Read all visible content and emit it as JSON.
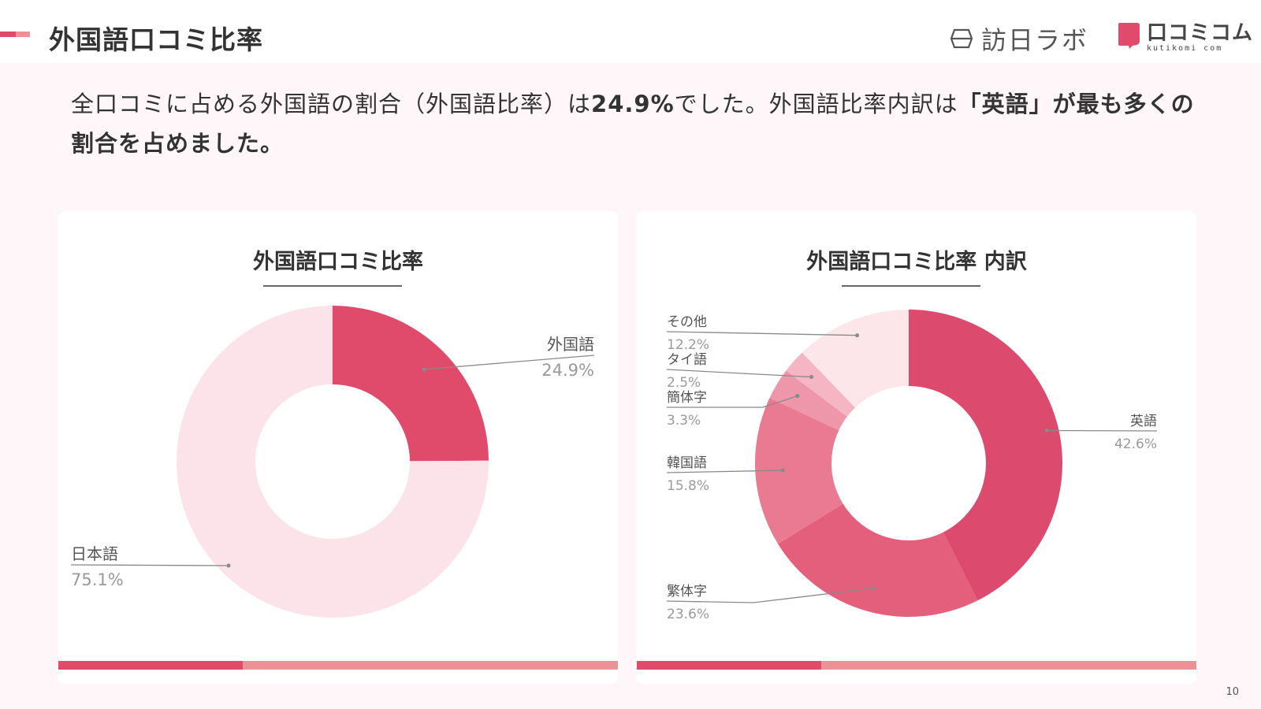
{
  "header": {
    "title": "外国語口コミ比率",
    "logo_houjin": "訪日ラボ",
    "logo_kuchi_main": "口コミコム",
    "logo_kuchi_sub": "kutikomi com"
  },
  "summary": {
    "part1": "全口コミに占める外国語の割合（外国語比率）は",
    "highlight1": "24.9%",
    "part2": "でした。外国語比率内訳は",
    "highlight2": "「英語」が最も多くの割合を占めました。"
  },
  "colors": {
    "accent": "#e04a6b",
    "accent_light": "#ec9195",
    "background": "#fef6f8"
  },
  "page_number": "10",
  "chart_data": [
    {
      "type": "pie",
      "title": "外国語口コミ比率",
      "categories": [
        "外国語",
        "日本語"
      ],
      "values": [
        24.9,
        75.1
      ],
      "value_labels": [
        "24.9%",
        "75.1%"
      ],
      "colors": [
        "#e04a6b",
        "#fbe3e9"
      ]
    },
    {
      "type": "pie",
      "title": "外国語口コミ比率 内訳",
      "categories": [
        "英語",
        "繁体字",
        "韓国語",
        "簡体字",
        "タイ語",
        "その他"
      ],
      "values": [
        42.6,
        23.6,
        15.8,
        3.3,
        2.5,
        12.2
      ],
      "value_labels": [
        "42.6%",
        "23.6%",
        "15.8%",
        "3.3%",
        "2.5%",
        "12.2%"
      ],
      "colors": [
        "#dc4a6e",
        "#e45f7c",
        "#ea7a92",
        "#ef97aa",
        "#f5b5c3",
        "#fde6ea"
      ]
    }
  ]
}
